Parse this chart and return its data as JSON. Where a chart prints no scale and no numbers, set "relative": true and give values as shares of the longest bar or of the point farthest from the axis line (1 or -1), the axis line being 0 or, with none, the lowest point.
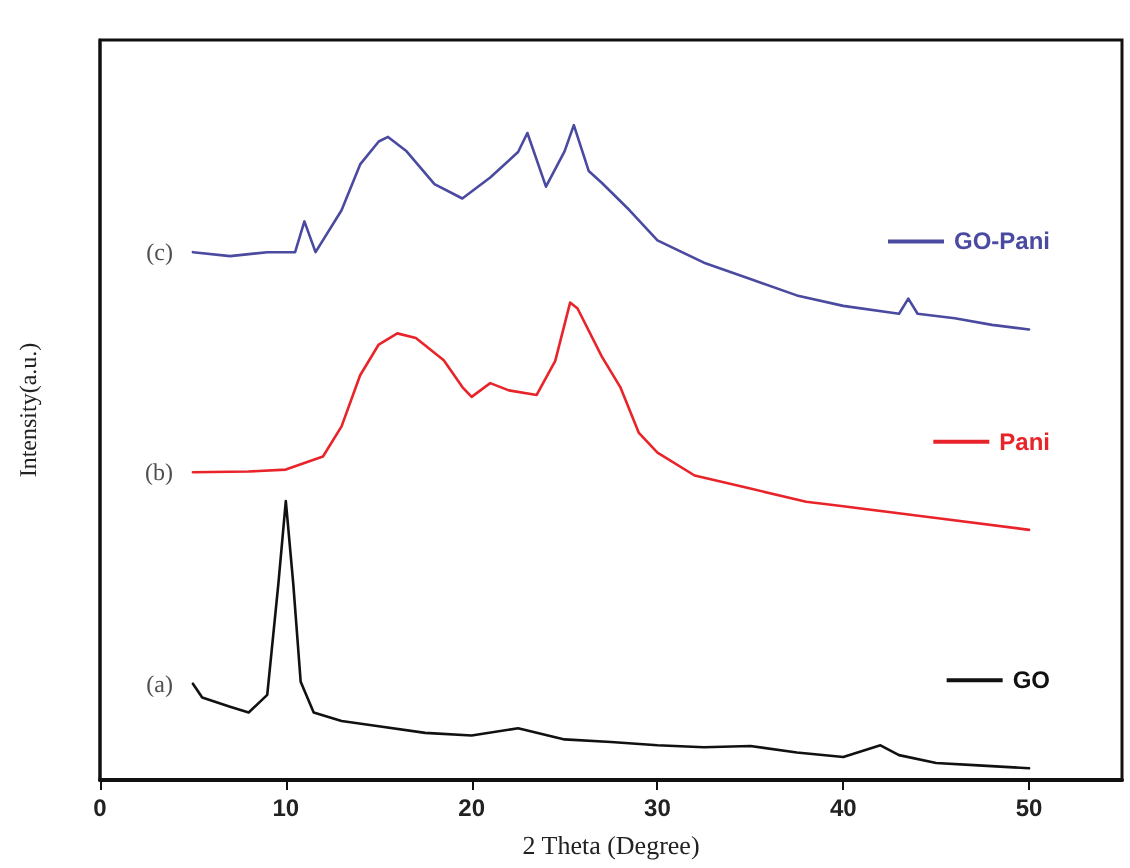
{
  "chart_data": {
    "type": "line",
    "xlabel": "2 Theta (Degree)",
    "ylabel": "Intensity(a.u.)",
    "relative": true,
    "xlim": [
      0,
      55
    ],
    "xticks": [
      0,
      10,
      20,
      30,
      40,
      50
    ],
    "legend": "right",
    "marker": "none",
    "line_style": "solid",
    "grid": false,
    "series": [
      {
        "name": "GO-Pani",
        "color": "#4a4aa0",
        "x": [
          5,
          7,
          9,
          10.5,
          11,
          11.6,
          13,
          14,
          15,
          15.5,
          16.5,
          18,
          19.5,
          21,
          22.5,
          23,
          24,
          25,
          25.5,
          26.3,
          27,
          28.5,
          30,
          32.5,
          35,
          37.5,
          40,
          43,
          43.5,
          44,
          46,
          48,
          50
        ],
        "values": [
          0.806,
          0.8,
          0.806,
          0.806,
          0.853,
          0.806,
          0.87,
          0.94,
          0.975,
          0.982,
          0.96,
          0.91,
          0.888,
          0.92,
          0.959,
          0.988,
          0.906,
          0.96,
          1.0,
          0.93,
          0.912,
          0.87,
          0.824,
          0.79,
          0.765,
          0.74,
          0.724,
          0.712,
          0.735,
          0.712,
          0.705,
          0.695,
          0.688
        ]
      },
      {
        "name": "Pani",
        "color": "#e8242a",
        "x": [
          5,
          8,
          10,
          12,
          13,
          14,
          15,
          16,
          17,
          18.5,
          19.5,
          20,
          21,
          22,
          23.5,
          24.5,
          25.3,
          25.7,
          27,
          28,
          29,
          30,
          32,
          35,
          38,
          40,
          45,
          50
        ],
        "values": [
          0.47,
          0.471,
          0.474,
          0.494,
          0.54,
          0.618,
          0.665,
          0.682,
          0.675,
          0.641,
          0.6,
          0.585,
          0.606,
          0.595,
          0.588,
          0.64,
          0.729,
          0.72,
          0.647,
          0.6,
          0.53,
          0.5,
          0.465,
          0.445,
          0.425,
          0.418,
          0.4,
          0.382
        ]
      },
      {
        "name": "GO",
        "color": "#111111",
        "x": [
          5,
          5.5,
          7,
          8,
          9,
          9.6,
          10,
          10.4,
          10.8,
          11.5,
          13,
          15,
          17.5,
          20,
          22.5,
          25,
          27.5,
          30,
          32.5,
          35,
          37.5,
          40,
          42,
          43,
          45,
          47.5,
          50
        ],
        "values": [
          0.147,
          0.126,
          0.112,
          0.103,
          0.13,
          0.3,
          0.426,
          0.3,
          0.15,
          0.103,
          0.09,
          0.082,
          0.072,
          0.068,
          0.079,
          0.062,
          0.058,
          0.053,
          0.05,
          0.052,
          0.042,
          0.035,
          0.053,
          0.038,
          0.026,
          0.022,
          0.018
        ]
      }
    ],
    "annotations": [
      "(c)",
      "(b)",
      "(a)"
    ]
  }
}
